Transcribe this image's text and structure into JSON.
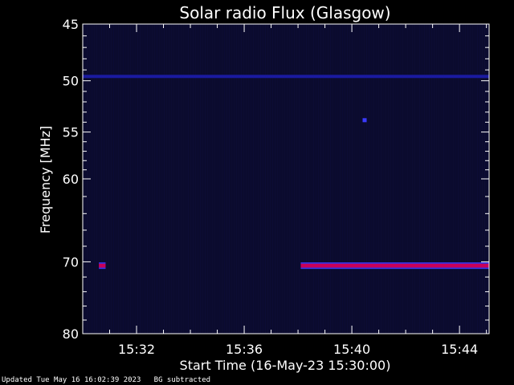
{
  "chart_data": {
    "type": "heatmap",
    "title": "Solar radio Flux (Glasgow)",
    "xlabel": "Start Time (16-May-23 15:30:00)",
    "ylabel": "Frequency [MHz]",
    "x_range_minutes": [
      0,
      15.1
    ],
    "x_ticks": [
      {
        "minute": 2,
        "label": "15:32"
      },
      {
        "minute": 6,
        "label": "15:36"
      },
      {
        "minute": 10,
        "label": "15:40"
      },
      {
        "minute": 14,
        "label": "15:44"
      }
    ],
    "y_range_mhz": [
      45,
      80
    ],
    "y_scale": "log",
    "y_ticks": [
      45,
      50,
      55,
      60,
      70,
      80
    ],
    "background_color": "#0b0b2e",
    "features": [
      {
        "name": "50 MHz band",
        "frequency": 49.6,
        "start_minute": 0,
        "end_minute": 15.1,
        "color": "#1a1aa0",
        "intensity": "medium"
      },
      {
        "name": "70.5 MHz burst 1",
        "frequency": 70.5,
        "start_minute": 0.6,
        "end_minute": 0.85,
        "color": "#c8005a",
        "intensity": "high"
      },
      {
        "name": "70.5 MHz burst 2",
        "frequency": 70.5,
        "start_minute": 8.1,
        "end_minute": 15.1,
        "color": "#c8005a",
        "intensity": "high"
      },
      {
        "name": "54 MHz spot",
        "frequency": 53.8,
        "start_minute": 10.4,
        "end_minute": 10.55,
        "color": "#3a3aff",
        "intensity": "high"
      }
    ]
  },
  "footer": {
    "updated": "Updated Tue May 16 16:02:39 2023",
    "note": "BG subtracted"
  }
}
